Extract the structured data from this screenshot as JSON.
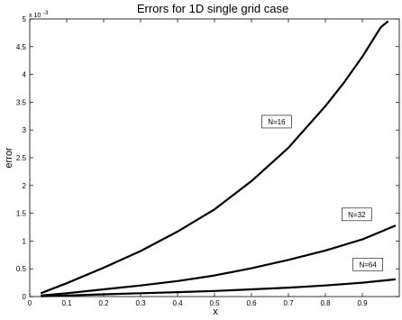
{
  "chart_data": {
    "type": "line",
    "title": "Errors for 1D single grid case",
    "xlabel": "x",
    "ylabel": "error",
    "xlim": [
      0,
      1
    ],
    "ylim": [
      0,
      0.005
    ],
    "y_exponent_base": "x 10",
    "y_exponent_power": "-3",
    "x_ticks": [
      0,
      0.1,
      0.2,
      0.3,
      0.4,
      0.5,
      0.6,
      0.7,
      0.8,
      0.9
    ],
    "x_tick_labels": [
      "0",
      "0.1",
      "0.2",
      "0.3",
      "0.4",
      "0.5",
      "0.6",
      "0.7",
      "0.8",
      "0.9"
    ],
    "y_ticks": [
      0,
      0.0005,
      0.001,
      0.0015,
      0.002,
      0.0025,
      0.003,
      0.0035,
      0.004,
      0.0045,
      0.005
    ],
    "y_tick_labels": [
      "0",
      "0.5",
      "1",
      "1.5",
      "2",
      "2.5",
      "3",
      "3.5",
      "4",
      "4.5",
      "5"
    ],
    "grid": false,
    "series": [
      {
        "x": [
          0.03,
          0.1,
          0.2,
          0.3,
          0.4,
          0.5,
          0.6,
          0.7,
          0.8,
          0.85,
          0.9,
          0.95,
          0.97
        ],
        "y": [
          6e-05,
          0.00024,
          0.00052,
          0.00082,
          0.00117,
          0.00157,
          0.00208,
          0.00268,
          0.00343,
          0.00385,
          0.00432,
          0.00485,
          0.00496
        ]
      },
      {
        "x": [
          0.03,
          0.1,
          0.2,
          0.3,
          0.4,
          0.5,
          0.6,
          0.7,
          0.8,
          0.9,
          0.99
        ],
        "y": [
          2e-05,
          6e-05,
          0.00013,
          0.0002,
          0.00028,
          0.00038,
          0.00051,
          0.00066,
          0.00083,
          0.00103,
          0.00128
        ]
      },
      {
        "x": [
          0.03,
          0.1,
          0.2,
          0.3,
          0.4,
          0.5,
          0.6,
          0.7,
          0.8,
          0.9,
          0.99
        ],
        "y": [
          5e-06,
          2e-05,
          4e-05,
          6e-05,
          8e-05,
          0.0001,
          0.00013,
          0.00016,
          0.0002,
          0.00025,
          0.00031
        ]
      }
    ],
    "annotations": [
      {
        "text": "N=16",
        "x": 0.668,
        "y": 0.00315
      },
      {
        "text": "N=32",
        "x": 0.885,
        "y": 0.00148
      },
      {
        "text": "N=64",
        "x": 0.915,
        "y": 0.00058
      }
    ]
  }
}
